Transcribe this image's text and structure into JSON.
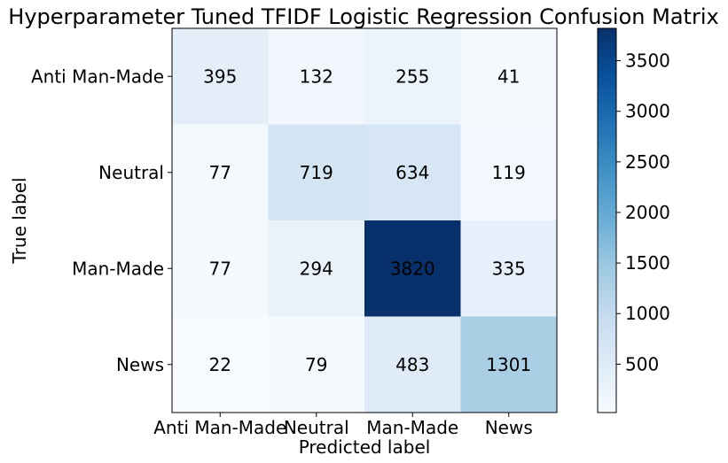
{
  "chart_data": {
    "type": "heatmap",
    "title": "Hyperparameter Tuned TFIDF Logistic Regression Confusion Matrix",
    "xlabel": "Predicted label",
    "ylabel": "True label",
    "x_categories": [
      "Anti Man-Made",
      "Neutral",
      "Man-Made",
      "News"
    ],
    "y_categories": [
      "Anti Man-Made",
      "Neutral",
      "Man-Made",
      "News"
    ],
    "values": [
      [
        395,
        132,
        255,
        41
      ],
      [
        77,
        719,
        634,
        119
      ],
      [
        77,
        294,
        3820,
        335
      ],
      [
        22,
        79,
        483,
        1301
      ]
    ],
    "colormap": "Blues",
    "colorbar": {
      "range": [
        22,
        3820
      ],
      "ticks": [
        500,
        1000,
        1500,
        2000,
        2500,
        3000,
        3500
      ]
    },
    "text_colors": {
      "dark_cell": "#ffffff",
      "light_cell": "#08306b"
    }
  }
}
